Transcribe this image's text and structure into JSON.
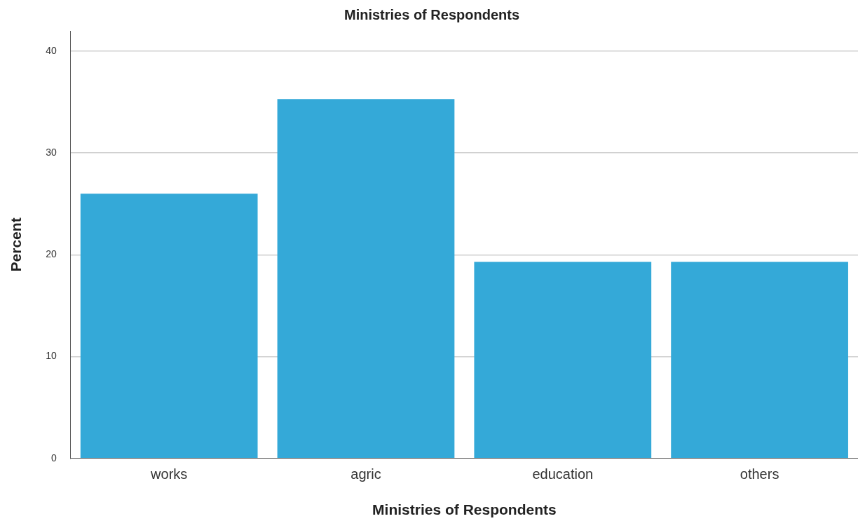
{
  "chart_data": {
    "type": "bar",
    "title": "Ministries of Respondents",
    "xlabel": "Ministries of Respondents",
    "ylabel": "Percent",
    "categories": [
      "works",
      "agric",
      "education",
      "others"
    ],
    "values": [
      26,
      35.3,
      19.3,
      19.3
    ],
    "color": "#34a9d8",
    "ylim": [
      0,
      42
    ],
    "yticks": [
      0,
      10,
      20,
      30,
      40
    ],
    "grid": "y",
    "legend": false
  }
}
